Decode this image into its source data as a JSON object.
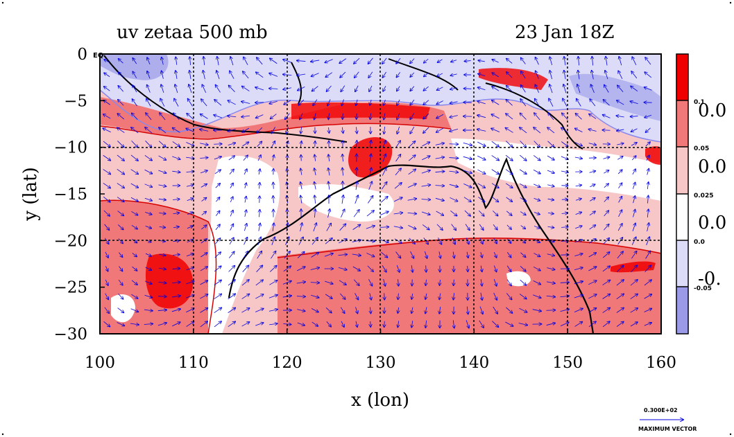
{
  "header": {
    "title_left": "uv zetaa 500 mb",
    "title_right": "23 Jan 18Z"
  },
  "axes": {
    "xlabel": "x (lon)",
    "ylabel": "y (lat)",
    "eq_label": "EQ"
  },
  "colorbar": {
    "small_labels": [
      "0.1",
      "0.05",
      "0.025",
      "0.0",
      "-0.05"
    ],
    "big_labels": [
      "0.0",
      "0.0",
      "0.0",
      "-0."
    ]
  },
  "vector_legend": {
    "value": "0.300E+02",
    "caption": "MAXIMUM VECTOR"
  },
  "chart_data": {
    "type": "heatmap",
    "variable": "zetaa",
    "level": "500 mb",
    "xlim": [
      100,
      160
    ],
    "ylim": [
      -30,
      0
    ],
    "x_ticks": [
      "100",
      "110",
      "120",
      "130",
      "140",
      "150",
      "160"
    ],
    "y_ticks": [
      "0",
      "−5",
      "−10",
      "−15",
      "−20",
      "−25",
      "−30"
    ],
    "grid": true,
    "colors": {
      "red_strong": "#f00000",
      "red_mid": "#f07878",
      "red_light": "#f7c7c7",
      "white": "#ffffff",
      "blue_light": "#dcdcf8",
      "blue_mid": "#9a9ae8",
      "contour_red": "#d60000",
      "contour_blue": "#8888ee",
      "vector": "#0000e0",
      "coast": "#000000"
    },
    "colorbar_colors": [
      "#f00000",
      "#f07878",
      "#f7c7c7",
      "#ffffff",
      "#dcdcf8",
      "#9a9ae8"
    ]
  }
}
